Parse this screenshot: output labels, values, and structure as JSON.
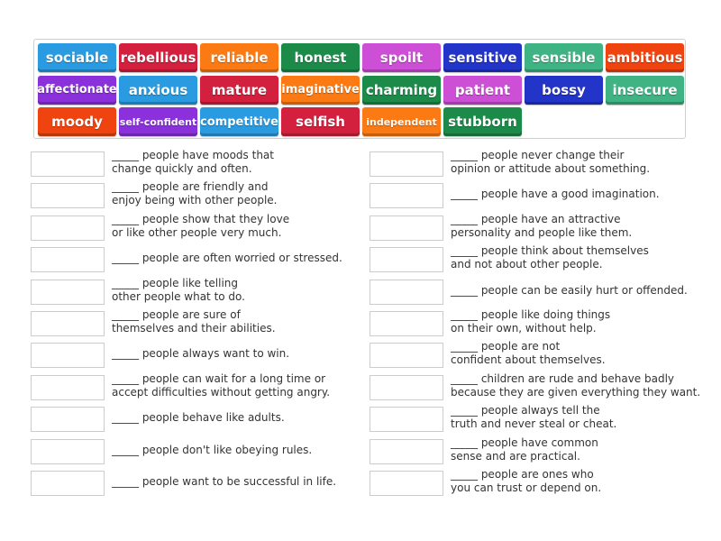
{
  "word_bank": {
    "tiles": [
      {
        "label": "sociable",
        "color": "#2a9be0",
        "size": 15
      },
      {
        "label": "rebellious",
        "color": "#d2203e",
        "size": 15
      },
      {
        "label": "reliable",
        "color": "#fb7a13",
        "size": 15
      },
      {
        "label": "honest",
        "color": "#1c8b4a",
        "size": 15
      },
      {
        "label": "spoilt",
        "color": "#cd4fd6",
        "size": 15
      },
      {
        "label": "sensitive",
        "color": "#2334c8",
        "size": 15
      },
      {
        "label": "sensible",
        "color": "#3fb383",
        "size": 15
      },
      {
        "label": "ambitious",
        "color": "#ef4310",
        "size": 15
      },
      {
        "label": "affectionate",
        "color": "#8a31dc",
        "size": 13
      },
      {
        "label": "anxious",
        "color": "#2a9be0",
        "size": 15
      },
      {
        "label": "mature",
        "color": "#d2203e",
        "size": 15
      },
      {
        "label": "imaginative",
        "color": "#fb7a13",
        "size": 13
      },
      {
        "label": "charming",
        "color": "#1c8b4a",
        "size": 15
      },
      {
        "label": "patient",
        "color": "#cd4fd6",
        "size": 15
      },
      {
        "label": "bossy",
        "color": "#2334c8",
        "size": 15
      },
      {
        "label": "insecure",
        "color": "#3fb383",
        "size": 15
      },
      {
        "label": "moody",
        "color": "#ef4310",
        "size": 15
      },
      {
        "label": "self-confident",
        "color": "#8a31dc",
        "size": 11
      },
      {
        "label": "competitive",
        "color": "#2a9be0",
        "size": 13
      },
      {
        "label": "selfish",
        "color": "#d2203e",
        "size": 15
      },
      {
        "label": "independent",
        "color": "#fb7a13",
        "size": 11
      },
      {
        "label": "stubborn",
        "color": "#1c8b4a",
        "size": 15
      }
    ]
  },
  "questions": {
    "left": [
      {
        "line1": "_____ people have moods that",
        "line2": "change quickly and often."
      },
      {
        "line1": "_____ people are friendly and",
        "line2": "enjoy being with other people."
      },
      {
        "line1": "_____ people show that they love",
        "line2": "or like other people very much."
      },
      {
        "line1": "_____ people are often worried or stressed.",
        "line2": ""
      },
      {
        "line1": "_____ people like telling",
        "line2": "other people what to do."
      },
      {
        "line1": "_____ people are sure of",
        "line2": "themselves and their abilities."
      },
      {
        "line1": "_____ people always want to win.",
        "line2": ""
      },
      {
        "line1": "_____ people can wait for a long time or",
        "line2": "accept difficulties without getting angry."
      },
      {
        "line1": "_____ people behave like adults.",
        "line2": ""
      },
      {
        "line1": "_____ people don't like obeying rules.",
        "line2": ""
      },
      {
        "line1": "_____ people want to be successful in life.",
        "line2": ""
      }
    ],
    "right": [
      {
        "line1": "_____ people never change their",
        "line2": "opinion or attitude about something."
      },
      {
        "line1": "_____ people have a good imagination.",
        "line2": ""
      },
      {
        "line1": "_____ people have an attractive",
        "line2": "personality and people like them."
      },
      {
        "line1": "_____ people think about themselves",
        "line2": "and not about other people."
      },
      {
        "line1": "_____ people can be easily hurt or offended.",
        "line2": ""
      },
      {
        "line1": "_____ people like doing things",
        "line2": "on their own, without help."
      },
      {
        "line1": "_____ people are not",
        "line2": "confident about themselves."
      },
      {
        "line1": "_____ children are rude and behave badly",
        "line2": "because they are given everything they want."
      },
      {
        "line1": "_____ people always tell the",
        "line2": "truth and never steal or cheat."
      },
      {
        "line1": "_____ people have common",
        "line2": "sense and are practical."
      },
      {
        "line1": "_____ people are ones who",
        "line2": "you can trust or depend on."
      }
    ]
  }
}
